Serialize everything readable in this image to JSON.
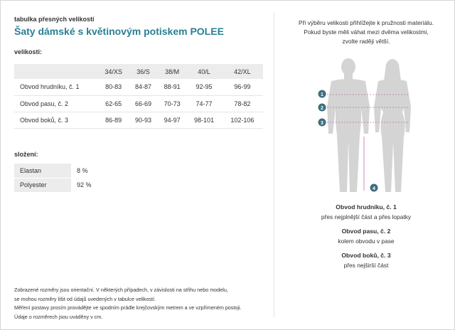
{
  "header": {
    "kicker": "tabulka přesných velikostí",
    "title": "Šaty dámské s květinovým potiskem POLEE"
  },
  "sizes": {
    "heading": "velikosti:",
    "columns": [
      "",
      "34/XS",
      "36/S",
      "38/M",
      "40/L",
      "42/XL"
    ],
    "rows": [
      {
        "label": "Obvod hrudníku, č. 1",
        "values": [
          "80-83",
          "84-87",
          "88-91",
          "92-95",
          "96-99"
        ]
      },
      {
        "label": "Obvod pasu, č. 2",
        "values": [
          "62-65",
          "66-69",
          "70-73",
          "74-77",
          "78-82"
        ]
      },
      {
        "label": "Obvod boků, č. 3",
        "values": [
          "86-89",
          "90-93",
          "94-97",
          "98-101",
          "102-106"
        ]
      }
    ]
  },
  "composition": {
    "heading": "složení:",
    "items": [
      {
        "material": "Elastan",
        "percent": "8 %"
      },
      {
        "material": "Polyester",
        "percent": "92 %"
      }
    ]
  },
  "notes": [
    "Zobrazené rozměry jsou orientační. V některých případech, v závislosti na střihu nebo modelu,",
    "se mohou rozměry lišit od údajů uvedených v tabulce velikostí.",
    "Měření postavy prosím provádějte ve spodním prádle krejčovským metrem a ve vzpřímeném postoji.",
    "Údaje o rozměrech jsou uváděny v cm."
  ],
  "intro": {
    "line1": "Při výběru velikosti přihlížejte k pružnosti materiálu.",
    "line2": "Pokud byste měli váhat mezi dvěma velikostmi,",
    "line3": "zvolte raději větší."
  },
  "markers": [
    "1",
    "2",
    "3",
    "4"
  ],
  "measurements": [
    {
      "title": "Obvod hrudníku, č. 1",
      "desc": "přes nejplnější část a přes lopatky"
    },
    {
      "title": "Obvod pasu, č. 2",
      "desc": "kolem obvodu v pase"
    },
    {
      "title": "Obvod boků, č. 3",
      "desc": "přes nejširší část"
    }
  ],
  "colors": {
    "accent": "#2a7f94",
    "marker": "#3d6e7e",
    "figure": "#d4d4d4",
    "measure_line": "#c070a8"
  }
}
